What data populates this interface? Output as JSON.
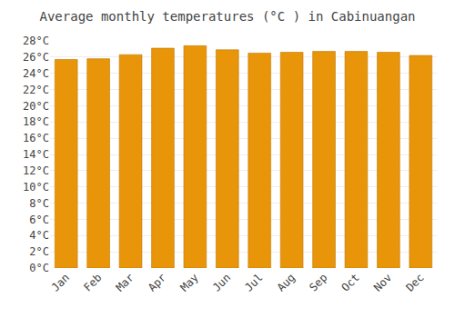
{
  "chart_data": {
    "type": "bar",
    "title": "Average monthly temperatures (°C ) in Cabinuangan",
    "categories": [
      "Jan",
      "Feb",
      "Mar",
      "Apr",
      "May",
      "Jun",
      "Jul",
      "Aug",
      "Sep",
      "Oct",
      "Nov",
      "Dec"
    ],
    "values": [
      25.7,
      25.8,
      26.3,
      27.1,
      27.4,
      26.9,
      26.5,
      26.6,
      26.7,
      26.7,
      26.6,
      26.2
    ],
    "color": "#E8950A",
    "ylim": [
      0,
      28
    ],
    "yticks": [
      {
        "value": 0,
        "label": "0°C"
      },
      {
        "value": 2,
        "label": "2°C"
      },
      {
        "value": 4,
        "label": "4°C"
      },
      {
        "value": 6,
        "label": "6°C"
      },
      {
        "value": 8,
        "label": "8°C"
      },
      {
        "value": 10,
        "label": "10°C"
      },
      {
        "value": 12,
        "label": "12°C"
      },
      {
        "value": 14,
        "label": "14°C"
      },
      {
        "value": 16,
        "label": "16°C"
      },
      {
        "value": 18,
        "label": "18°C"
      },
      {
        "value": 20,
        "label": "20°C"
      },
      {
        "value": 22,
        "label": "22°C"
      },
      {
        "value": 24,
        "label": "24°C"
      },
      {
        "value": 26,
        "label": "26°C"
      },
      {
        "value": 28,
        "label": "28°C"
      }
    ],
    "grid": true
  }
}
